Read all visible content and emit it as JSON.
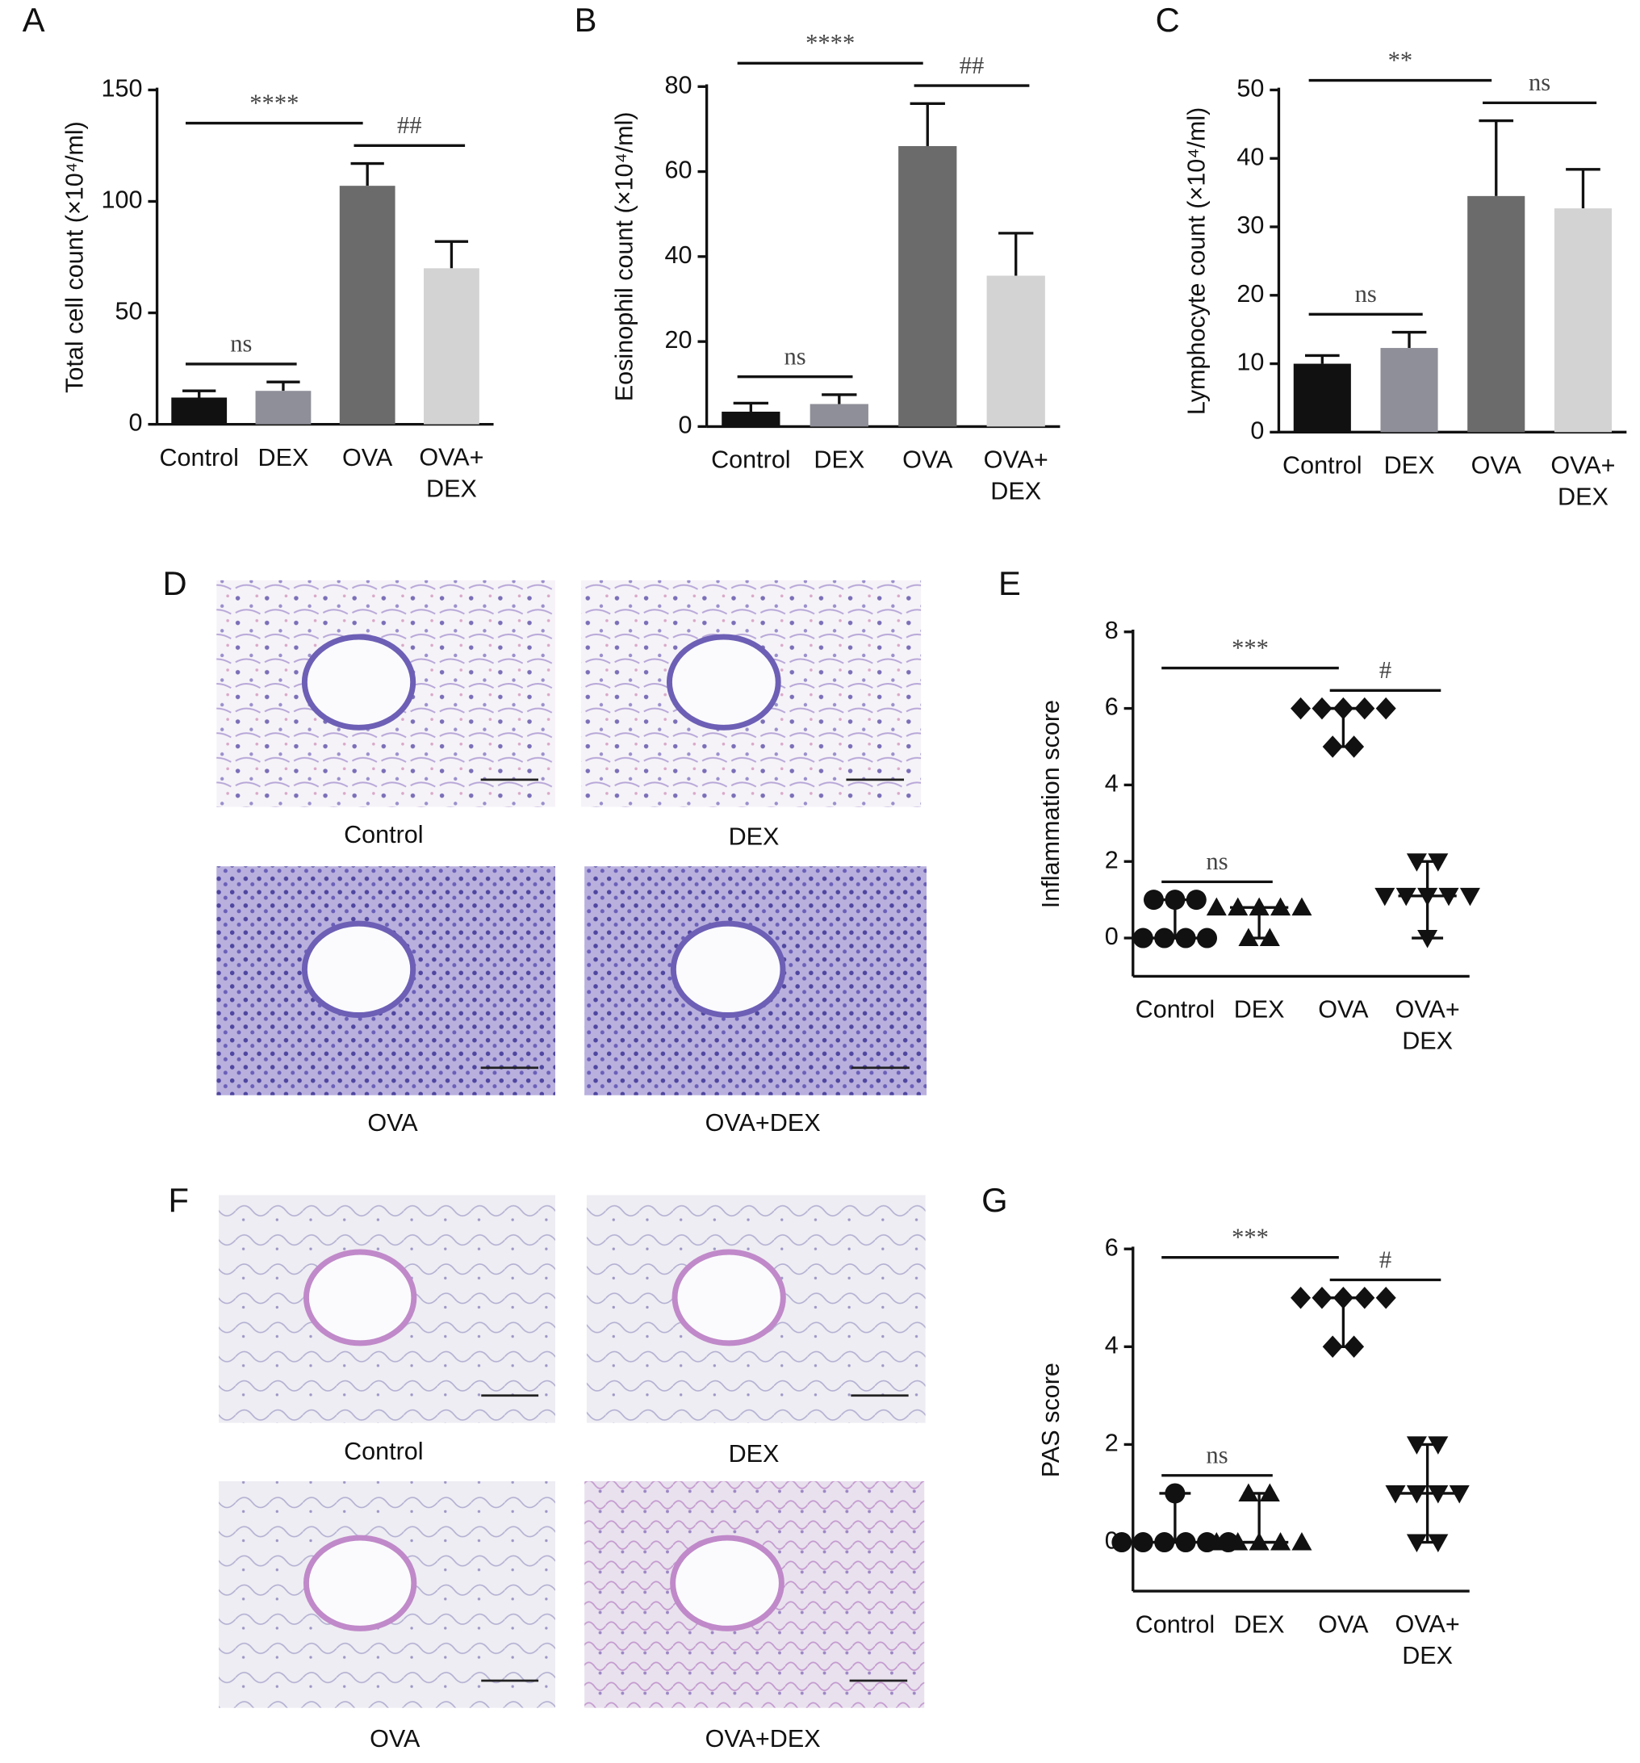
{
  "chart_data": [
    {
      "panel": "A",
      "type": "bar",
      "y_label": "Total cell count (×10⁴/ml)",
      "categories": [
        "Control",
        "DEX",
        "OVA",
        "OVA+\nDEX"
      ],
      "values": [
        12,
        15,
        107,
        70
      ],
      "errors": [
        3,
        4,
        10,
        12
      ],
      "colors": [
        "#111111",
        "#8f8f99",
        "#6b6b6b",
        "#d3d3d3"
      ],
      "ylim": [
        0,
        150
      ],
      "yticks": [
        0,
        50,
        100,
        150
      ],
      "annotations": [
        {
          "text": "ns",
          "from": 0,
          "to": 1
        },
        {
          "text": "##",
          "from": 2,
          "to": 3
        },
        {
          "text": "****",
          "from": 0,
          "to": 2
        }
      ]
    },
    {
      "panel": "B",
      "type": "bar",
      "y_label": "Eosinophil count (×10⁴/ml)",
      "categories": [
        "Control",
        "DEX",
        "OVA",
        "OVA+\nDEX"
      ],
      "values": [
        3.5,
        5.3,
        66,
        35.5
      ],
      "errors": [
        2,
        2.2,
        10,
        10
      ],
      "colors": [
        "#111111",
        "#8f8f99",
        "#6b6b6b",
        "#d3d3d3"
      ],
      "ylim": [
        0,
        80
      ],
      "yticks": [
        0,
        20,
        40,
        60,
        80
      ],
      "annotations": [
        {
          "text": "ns",
          "from": 0,
          "to": 1
        },
        {
          "text": "##",
          "from": 2,
          "to": 3
        },
        {
          "text": "****",
          "from": 0,
          "to": 2
        }
      ]
    },
    {
      "panel": "C",
      "type": "bar",
      "y_label": "Lymphocyte count (×10⁴/ml)",
      "categories": [
        "Control",
        "DEX",
        "OVA",
        "OVA+\nDEX"
      ],
      "values": [
        10,
        12.3,
        34.5,
        32.7
      ],
      "errors": [
        1.2,
        2.3,
        11,
        5.7
      ],
      "colors": [
        "#111111",
        "#8f8f99",
        "#6b6b6b",
        "#d3d3d3"
      ],
      "ylim": [
        0,
        50
      ],
      "yticks": [
        0,
        10,
        20,
        30,
        40,
        50
      ],
      "annotations": [
        {
          "text": "ns",
          "from": 0,
          "to": 1
        },
        {
          "text": "ns",
          "from": 2,
          "to": 3
        },
        {
          "text": "**",
          "from": 0,
          "to": 2
        }
      ]
    },
    {
      "panel": "E",
      "type": "dot",
      "y_label": "Inflammation score",
      "categories": [
        "Control",
        "DEX",
        "OVA",
        "OVA+\nDEX"
      ],
      "markers": [
        "circle",
        "triangle",
        "diamond",
        "triangle-down"
      ],
      "values": [
        [
          1,
          1,
          1,
          0,
          0,
          0,
          0
        ],
        [
          0.8,
          0.8,
          0.8,
          0.8,
          0.8,
          0,
          0
        ],
        [
          6,
          6,
          6,
          6,
          6,
          5,
          5
        ],
        [
          2,
          2,
          1.1,
          1.1,
          1.1,
          1.1,
          1.1,
          0
        ]
      ],
      "medians": [
        0,
        0.8,
        6,
        1.1
      ],
      "ylim": [
        -1,
        8
      ],
      "yticks": [
        0,
        2,
        4,
        6,
        8
      ],
      "annotations": [
        {
          "text": "ns",
          "from": 0,
          "to": 1
        },
        {
          "text": "#",
          "from": 2,
          "to": 3
        },
        {
          "text": "***",
          "from": 0,
          "to": 2
        }
      ]
    },
    {
      "panel": "G",
      "type": "dot",
      "y_label": "PAS score",
      "categories": [
        "Control",
        "DEX",
        "OVA",
        "OVA+\nDEX"
      ],
      "markers": [
        "circle",
        "triangle",
        "diamond",
        "triangle-down"
      ],
      "values": [
        [
          1,
          0,
          0,
          0,
          0,
          0,
          0
        ],
        [
          1,
          1,
          0,
          0,
          0,
          0,
          0
        ],
        [
          5,
          5,
          5,
          5,
          5,
          4,
          4
        ],
        [
          2,
          2,
          1,
          1,
          1,
          1,
          0,
          0
        ]
      ],
      "medians": [
        0,
        0,
        5,
        1
      ],
      "ylim": [
        -1,
        6
      ],
      "yticks": [
        0,
        2,
        4,
        6
      ],
      "annotations": [
        {
          "text": "ns",
          "from": 0,
          "to": 1
        },
        {
          "text": "#",
          "from": 2,
          "to": 3
        },
        {
          "text": "***",
          "from": 0,
          "to": 2
        }
      ]
    }
  ],
  "image_panels": [
    {
      "panel": "D",
      "captions": [
        "Control",
        "DEX",
        "OVA",
        "OVA+DEX"
      ]
    },
    {
      "panel": "F",
      "captions": [
        "Control",
        "DEX",
        "OVA",
        "OVA+DEX"
      ]
    }
  ]
}
